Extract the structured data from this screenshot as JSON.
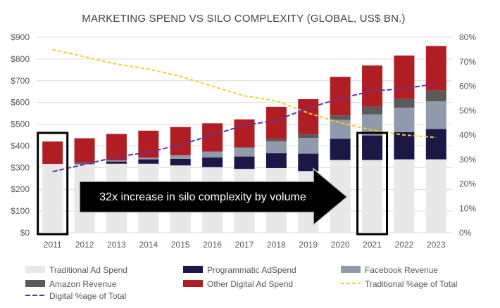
{
  "chart_data": {
    "type": "bar",
    "title": "MARKETING SPEND VS SILO COMPLEXITY (GLOBAL, US$ BN.)",
    "categories": [
      "2011",
      "2012",
      "2013",
      "2014",
      "2015",
      "2016",
      "2017",
      "2018",
      "2019",
      "2020",
      "2021",
      "2022",
      "2023"
    ],
    "stacked": true,
    "series": [
      {
        "name": "Traditional Ad Spend",
        "color": "#e8e8e8",
        "values": [
          317,
          316,
          318,
          318,
          310,
          302,
          294,
          298,
          284,
          335,
          335,
          338,
          338
        ]
      },
      {
        "name": "Programmatic AdSpend",
        "color": "#1b1746",
        "values": [
          0,
          3,
          10,
          20,
          30,
          45,
          57,
          68,
          80,
          98,
          113,
          125,
          140
        ]
      },
      {
        "name": "Facebook Revenue",
        "color": "#8f9bab",
        "values": [
          0,
          3,
          5,
          8,
          17,
          27,
          40,
          55,
          73,
          87,
          97,
          113,
          127
        ]
      },
      {
        "name": "Amazon Revenue",
        "color": "#5a5a5a",
        "values": [
          0,
          0,
          0,
          0,
          0,
          0,
          3,
          10,
          18,
          20,
          35,
          40,
          50
        ]
      },
      {
        "name": "Other Digital Ad Spend",
        "color": "#b01e23",
        "values": [
          103,
          113,
          122,
          124,
          130,
          130,
          128,
          149,
          160,
          178,
          190,
          200,
          205
        ]
      }
    ],
    "lines": [
      {
        "name": "Traditional %age of Total",
        "color": "#f5cd2d",
        "dash": "5,3",
        "axis": "y2",
        "values": [
          75,
          72,
          69,
          67,
          64,
          60,
          56,
          54,
          49,
          45,
          42,
          40,
          39
        ]
      },
      {
        "name": "Digital %age of Total",
        "color": "#5c35a8",
        "dash": "7,3",
        "axis": "y2",
        "values": [
          25,
          28,
          31,
          33,
          36,
          40,
          44,
          46,
          51,
          55,
          58,
          59,
          61
        ]
      }
    ],
    "y_ticks": [
      "$0",
      "$100",
      "$200",
      "$300",
      "$400",
      "$500",
      "$600",
      "$700",
      "$800",
      "$900"
    ],
    "y2_ticks": [
      "0%",
      "10%",
      "20%",
      "30%",
      "40%",
      "50%",
      "60%",
      "70%",
      "80%"
    ],
    "ylim": [
      0,
      900
    ],
    "y2lim": [
      0,
      80
    ],
    "legend_position": "bottom",
    "highlighted_categories": [
      "2011",
      "2021"
    ],
    "annotation": "32x increase in silo complexity by volume"
  }
}
